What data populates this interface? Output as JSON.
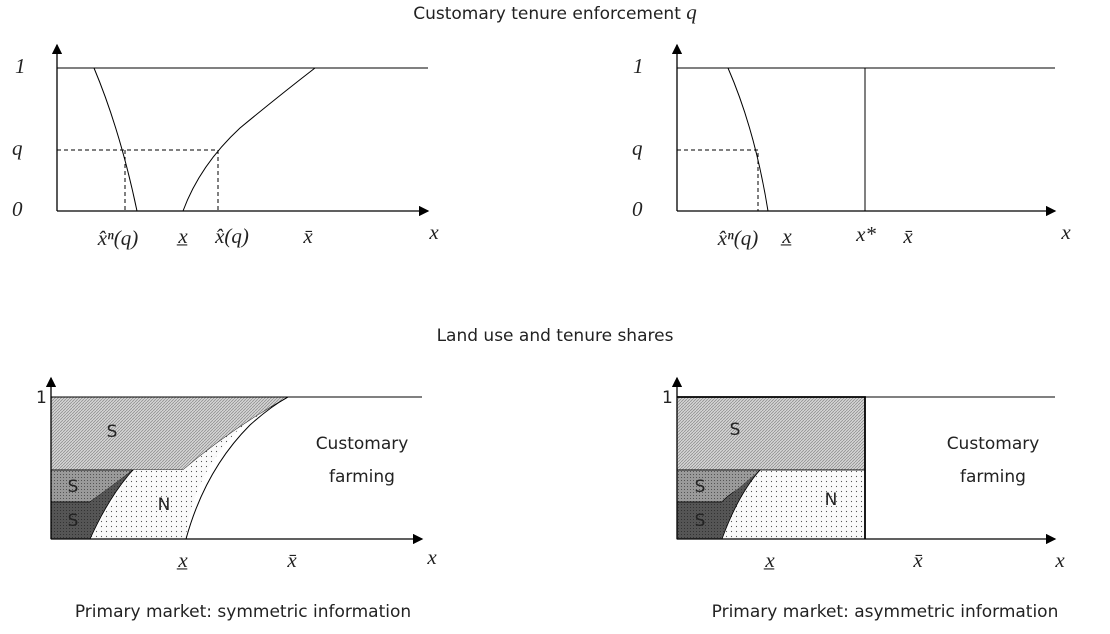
{
  "top_title": "Customary tenure enforcement",
  "top_title_symbol": "q",
  "panels": [
    {
      "y_labels": [
        "1",
        "q",
        "0"
      ],
      "x_labels": [
        "x̂ⁿ(q)",
        "x̲",
        "x̂(q)",
        "x̄",
        "x"
      ]
    },
    {
      "y_labels": [
        "1",
        "q",
        "0"
      ],
      "x_labels": [
        "x̂ⁿ(q)",
        "x̲",
        "x*",
        "x̄",
        "x"
      ]
    }
  ],
  "bottom_title": "Land use and tenure shares",
  "bottom_panels": [
    {
      "y_label": "1",
      "regions": [
        "S",
        "S",
        "S",
        "N"
      ],
      "region_label": [
        "Customary",
        "farming"
      ],
      "x_labels": [
        "x̲",
        "x̄",
        "x"
      ],
      "caption": "Primary market: symmetric information"
    },
    {
      "y_label": "1",
      "regions": [
        "S",
        "S",
        "S",
        "N"
      ],
      "region_label": [
        "Customary",
        "farming"
      ],
      "x_labels": [
        "x̲",
        "x̄",
        "x"
      ],
      "caption": "Primary market: asymmetric  information"
    }
  ]
}
